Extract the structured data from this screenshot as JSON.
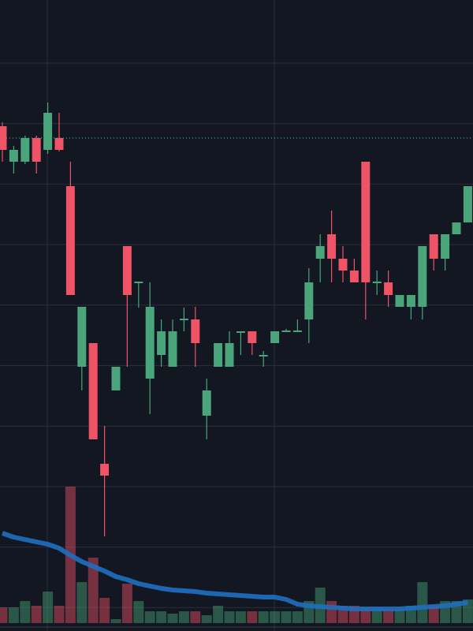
{
  "chart_data": {
    "type": "candlestick",
    "ylim": [
      0,
      80
    ],
    "up_color": "#4aa67a",
    "down_color": "#ef5366",
    "open": [
      64,
      59.5,
      59.5,
      62.5,
      61,
      62.5,
      56.4,
      33.5,
      36.5,
      21.2,
      30.5,
      48.8,
      44.1,
      32,
      35,
      33.5,
      39.4,
      39.5,
      27.3,
      33.5,
      33.5,
      37.8,
      38,
      34.8,
      36.5,
      37.9,
      37.9,
      39.5,
      47.2,
      50.3,
      47.2,
      45.7,
      59.5,
      44.1,
      44.2,
      41.1,
      41.1,
      41.1,
      50.3,
      47.2,
      50.3,
      51.8
    ],
    "high": [
      64.5,
      61.5,
      62.8,
      62.8,
      67,
      65.7,
      59.5,
      41.1,
      36.5,
      26,
      33.5,
      48.8,
      44.3,
      44.2,
      39.5,
      39.5,
      41,
      41.1,
      32,
      36.5,
      38,
      38,
      38,
      35.5,
      38,
      38.3,
      39.5,
      46,
      50.3,
      53.3,
      48.8,
      47.2,
      59.5,
      45.7,
      45.7,
      42.6,
      42.6,
      48.8,
      50.3,
      50.3,
      51.8,
      56.4
    ],
    "low": [
      59.5,
      58,
      59.2,
      58,
      60.5,
      60.8,
      42.6,
      30.5,
      24.3,
      12,
      30.5,
      33.5,
      41,
      27.5,
      33.5,
      33.5,
      38,
      33.5,
      24.3,
      33.5,
      33.5,
      35,
      35,
      33.5,
      36.5,
      37.9,
      37.9,
      36.5,
      44.2,
      44.2,
      44.2,
      44.2,
      39.5,
      42.6,
      41.1,
      41.1,
      39.5,
      39.5,
      45.7,
      45.7,
      50.3,
      51.8
    ],
    "close": [
      61,
      61,
      62.5,
      59.5,
      65.7,
      61,
      42.6,
      41.1,
      24.3,
      19.7,
      33.5,
      42.6,
      44.3,
      41.1,
      38,
      38,
      39.6,
      36.5,
      30.5,
      36.5,
      36.5,
      38,
      36.5,
      35,
      38,
      38.1,
      38.1,
      44.2,
      48.8,
      47.2,
      45.7,
      44.2,
      44.2,
      44.3,
      42.6,
      42.6,
      42.6,
      48.8,
      47.2,
      50.3,
      51.8,
      56.4
    ],
    "price_line": 62.5,
    "price_line_color": "#4fc3b0",
    "volume": {
      "ylim": [
        0,
        200
      ],
      "values": [
        20,
        20,
        28,
        22,
        40,
        22,
        173,
        52,
        83,
        32,
        5,
        50,
        28,
        15,
        15,
        12,
        15,
        15,
        10,
        22,
        15,
        15,
        15,
        15,
        15,
        15,
        15,
        28,
        45,
        28,
        22,
        22,
        20,
        20,
        18,
        18,
        22,
        52,
        22,
        28,
        28,
        30
      ]
    },
    "ma": {
      "color": "#1f6fc0",
      "ylim": [
        0,
        200
      ],
      "values": [
        114,
        109,
        106,
        103,
        100,
        95,
        86,
        78,
        72,
        66,
        59,
        55,
        50,
        47,
        44,
        42,
        41,
        40,
        38,
        37,
        36,
        35,
        34,
        33,
        33,
        30,
        24,
        22,
        21,
        20,
        19,
        18,
        18,
        18,
        18,
        18,
        19,
        20,
        21,
        22,
        24,
        26
      ]
    }
  }
}
